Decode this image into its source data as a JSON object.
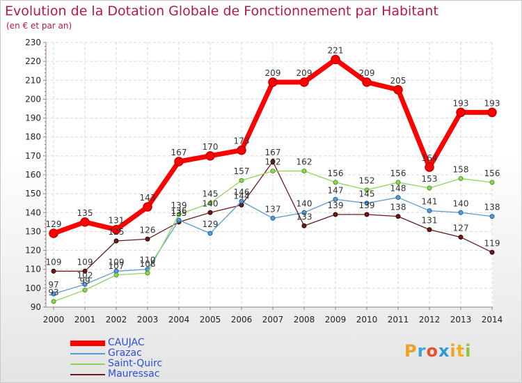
{
  "title": "Evolution de la Dotation Globale de Fonctionnement par Habitant",
  "subtitle": "(en € et par an)",
  "logo": {
    "text": "Proxiti",
    "colors": [
      "#f0a020",
      "#39a2dc",
      "#e8502a",
      "#2c9ad6",
      "#f0a020",
      "#f0b020",
      "#8cc63f"
    ]
  },
  "chart_data": {
    "type": "line",
    "title": "Evolution de la Dotation Globale de Fonctionnement par Habitant",
    "subtitle": "(en € et par an)",
    "x": [
      "2000",
      "2001",
      "2002",
      "2003",
      "2004",
      "2005",
      "2006",
      "2007",
      "2008",
      "2009",
      "2010",
      "2011",
      "2012",
      "2013",
      "2014"
    ],
    "ylim": [
      90,
      230
    ],
    "yticks": [
      90,
      100,
      110,
      120,
      130,
      140,
      150,
      160,
      170,
      180,
      190,
      200,
      210,
      220,
      230
    ],
    "grid": true,
    "legend_position": "bottom-left",
    "series": [
      {
        "name": "CAUJAC",
        "color": "#ff0000",
        "values": [
          129,
          135,
          131,
          143,
          167,
          170,
          173,
          209,
          209,
          221,
          209,
          205,
          164,
          193,
          193
        ]
      },
      {
        "name": "Grazac",
        "color": "#5b9bd5",
        "values": [
          97,
          102,
          109,
          110,
          136,
          129,
          146,
          137,
          140,
          147,
          145,
          148,
          141,
          140,
          138
        ]
      },
      {
        "name": "Saint-Quirc",
        "color": "#8fd45a",
        "values": [
          93,
          99,
          107,
          108,
          139,
          145,
          157,
          162,
          162,
          156,
          152,
          156,
          153,
          158,
          156
        ]
      },
      {
        "name": "Mauressac",
        "color": "#6b1a1a",
        "values": [
          109,
          109,
          125,
          126,
          135,
          140,
          144,
          167,
          133,
          139,
          139,
          138,
          131,
          127,
          119
        ]
      }
    ]
  }
}
